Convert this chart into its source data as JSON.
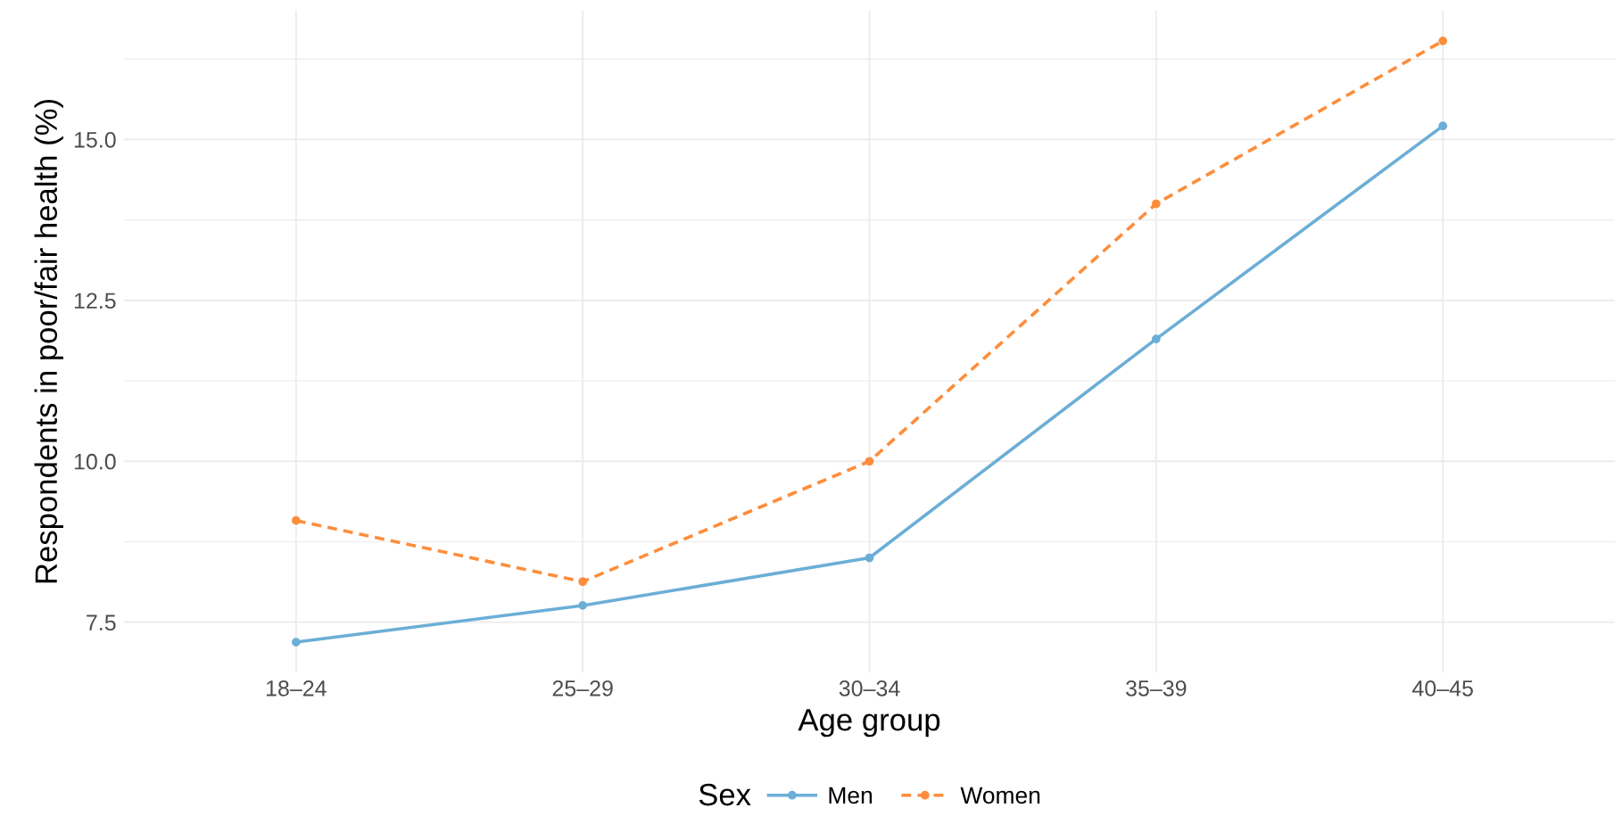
{
  "chart_data": {
    "type": "line",
    "xlabel": "Age group",
    "ylabel": "Respondents in poor/fair health (%)",
    "legend_title": "Sex",
    "categories": [
      "18–24",
      "25–29",
      "30–34",
      "35–39",
      "40–45"
    ],
    "series": [
      {
        "name": "Men",
        "color": "#6baed6",
        "values": [
          7.19,
          7.76,
          8.5,
          11.9,
          15.21
        ],
        "line_style": "solid"
      },
      {
        "name": "Women",
        "color": "#fd8d3c",
        "values": [
          9.08,
          8.13,
          10.0,
          14.0,
          16.53
        ],
        "line_style": "dashed"
      }
    ],
    "ylim": [
      6.72,
      17.0
    ],
    "yticks": [
      {
        "value": 7.5,
        "label": "7.5"
      },
      {
        "value": 10,
        "label": "10.0"
      },
      {
        "value": 12.5,
        "label": "12.5"
      },
      {
        "value": 15,
        "label": "15.0"
      }
    ],
    "grid": true,
    "legend": "bottom",
    "marker": "circle"
  }
}
